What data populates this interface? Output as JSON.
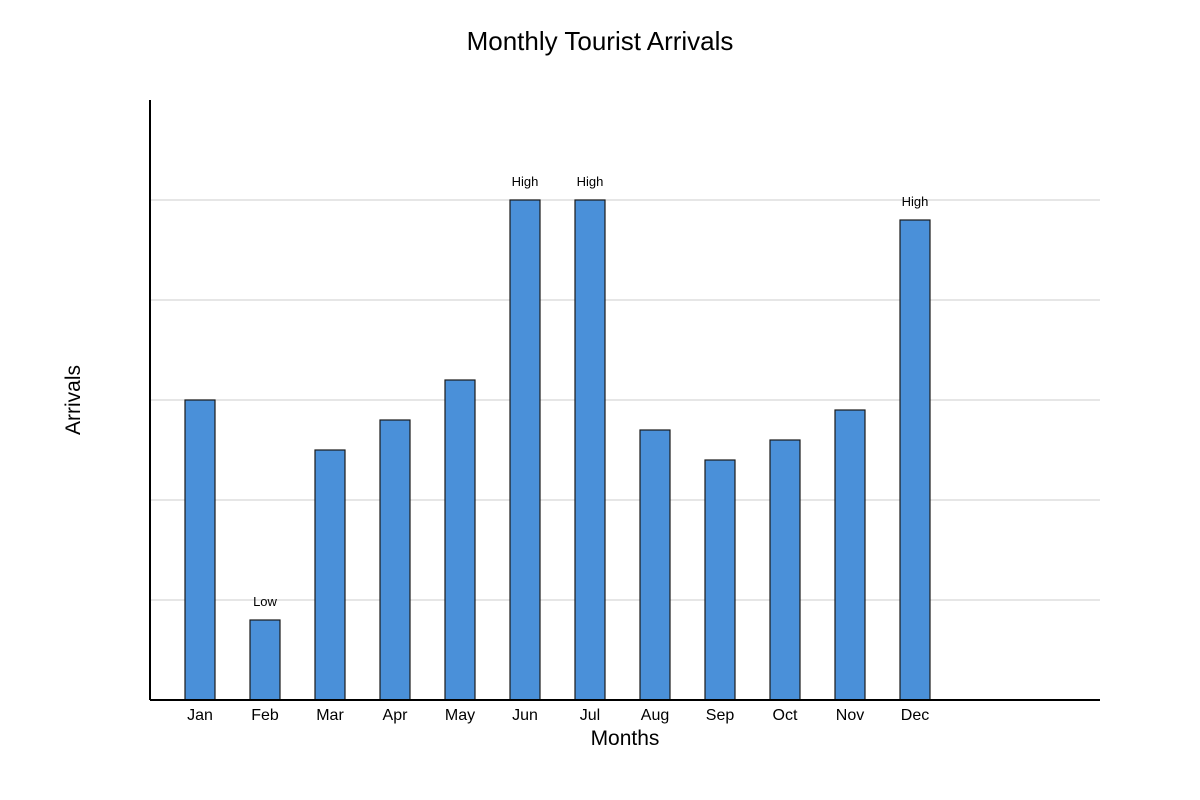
{
  "chart_data": {
    "type": "bar",
    "title": "Monthly Tourist Arrivals",
    "xlabel": "Months",
    "ylabel": "Arrivals",
    "categories": [
      "Jan",
      "Feb",
      "Mar",
      "Apr",
      "May",
      "Jun",
      "Jul",
      "Aug",
      "Sep",
      "Oct",
      "Nov",
      "Dec"
    ],
    "values": [
      300,
      80,
      250,
      280,
      320,
      500,
      500,
      270,
      240,
      260,
      290,
      480
    ],
    "ylim": [
      0,
      600
    ],
    "ytick_values": [
      100,
      200,
      300,
      400,
      500
    ],
    "y_tick_labels_shown": false,
    "grid": true,
    "annotations": [
      {
        "category": "Feb",
        "text": "Low"
      },
      {
        "category": "Jun",
        "text": "High"
      },
      {
        "category": "Jul",
        "text": "High"
      },
      {
        "category": "Dec",
        "text": "High"
      }
    ],
    "colors": {
      "bar": "#4a90d9",
      "bar_edge": "#1a1a1a",
      "grid": "#dddddd",
      "axis": "#000000"
    }
  }
}
